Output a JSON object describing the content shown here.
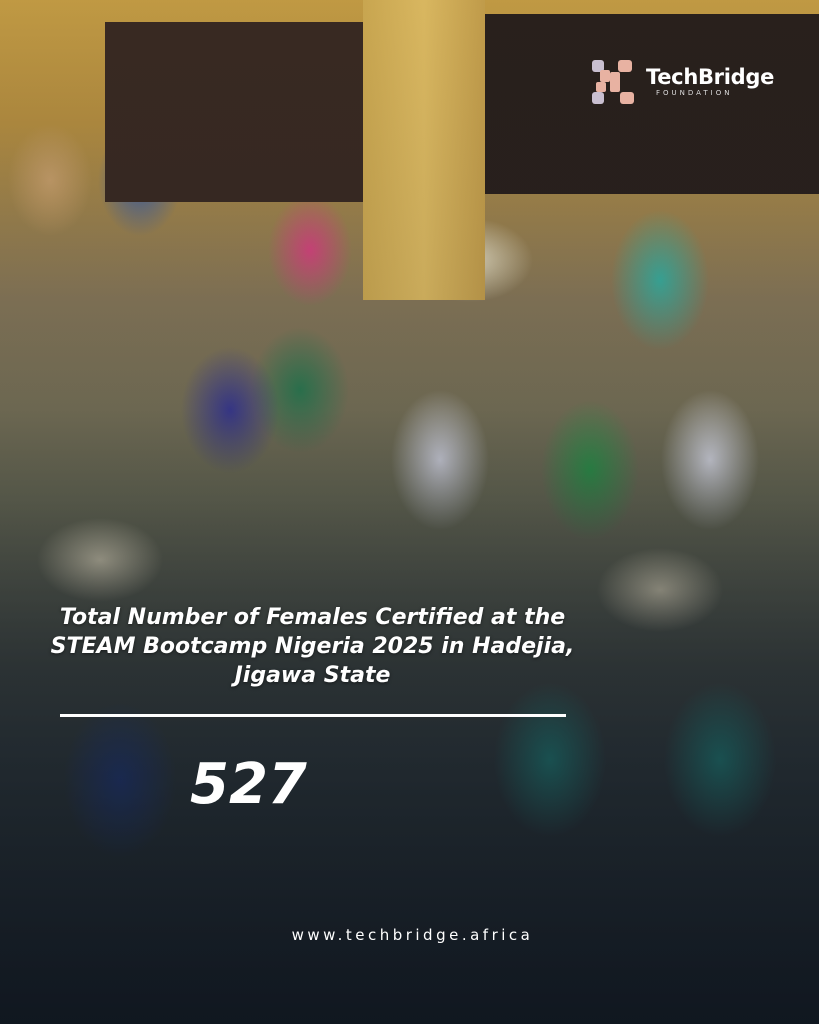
{
  "brand": {
    "name": "TechBridge",
    "subtitle": "FOUNDATION",
    "colors": {
      "logo_peach": "#e8b2a2",
      "logo_lilac": "#c9bfd0",
      "text": "#ffffff"
    }
  },
  "headline": "Total Number of Females Certified at the STEAM Bootcamp Nigeria 2025 in Hadejia, Jigawa State",
  "count": "527",
  "website": "www.techbridge.africa"
}
